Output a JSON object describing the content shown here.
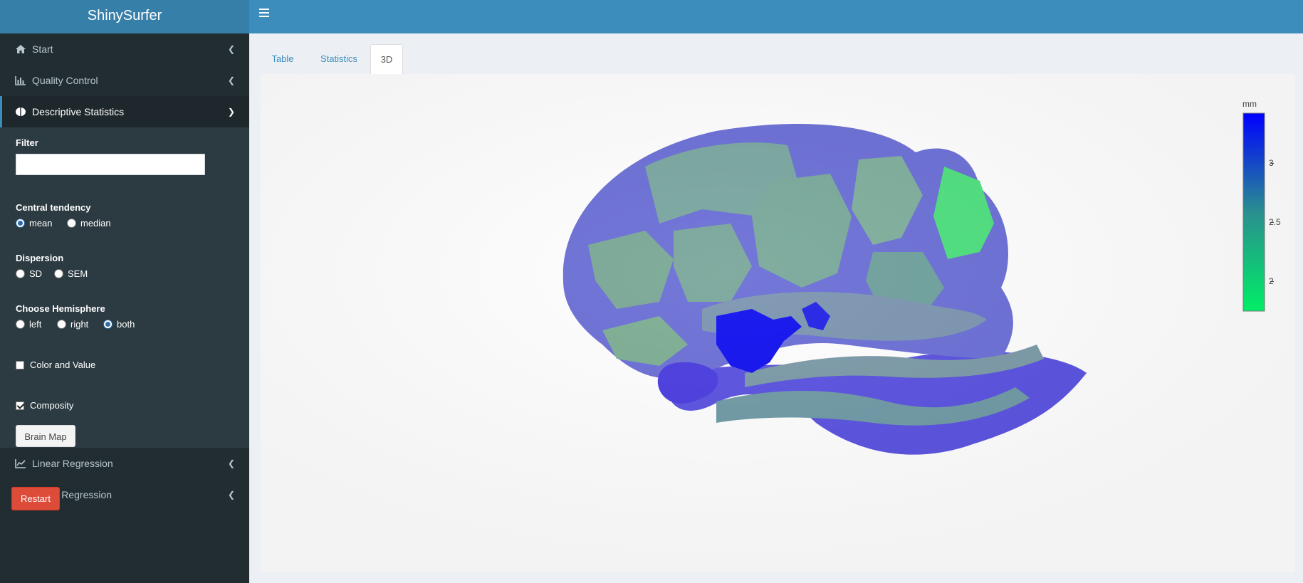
{
  "app": {
    "title": "ShinySurfer"
  },
  "sidebar": {
    "items": [
      {
        "label": "Start",
        "icon": "home-icon"
      },
      {
        "label": "Quality Control",
        "icon": "bar-chart-icon"
      },
      {
        "label": "Descriptive Statistics",
        "icon": "brain-icon"
      },
      {
        "label": "Linear Regression",
        "icon": "line-chart-icon"
      },
      {
        "label": "Lasso Regression",
        "icon": "line-chart-icon"
      }
    ],
    "descriptive": {
      "filter_label": "Filter",
      "filter_value": "",
      "central_label": "Central tendency",
      "central_options": [
        "mean",
        "median"
      ],
      "central_selected": "mean",
      "dispersion_label": "Dispersion",
      "dispersion_options": [
        "SD",
        "SEM"
      ],
      "dispersion_selected": "",
      "hemisphere_label": "Choose Hemisphere",
      "hemisphere_options": [
        "left",
        "right",
        "both"
      ],
      "hemisphere_selected": "both",
      "color_value_label": "Color and Value",
      "color_value_checked": false,
      "composity_label": "Composity",
      "composity_checked": true,
      "brain_map_label": "Brain Map"
    },
    "restart_label": "Restart"
  },
  "tabs": [
    {
      "label": "Table"
    },
    {
      "label": "Statistics"
    },
    {
      "label": "3D",
      "active": true
    }
  ],
  "colorbar": {
    "unit": "mm",
    "ticks": [
      "3",
      "2.5",
      "2"
    ],
    "colors": {
      "high": "#0000ff",
      "mid": "#2a8f8f",
      "low": "#00ee66"
    }
  },
  "colors": {
    "header": "#3c8dbc",
    "logo": "#367fa9",
    "sidebar": "#222d32",
    "danger": "#dd4b39"
  }
}
